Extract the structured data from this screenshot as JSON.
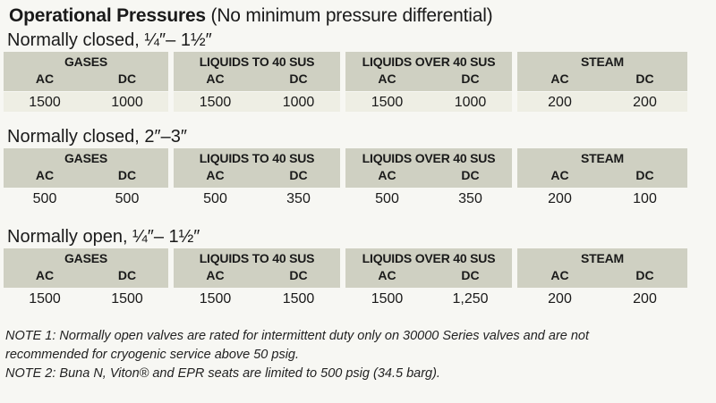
{
  "heading": {
    "bold": "Operational Pressures",
    "rest": " (No minimum pressure differential)"
  },
  "sections": [
    {
      "title": "Normally closed, ¼″– 1½″",
      "groups": [
        {
          "name": "GASES",
          "ac_label": "AC",
          "dc_label": "DC",
          "ac": "1500",
          "dc": "1000"
        },
        {
          "name": "LIQUIDS TO 40 SUS",
          "ac_label": "AC",
          "dc_label": "DC",
          "ac": "1500",
          "dc": "1000"
        },
        {
          "name": "LIQUIDS OVER 40 SUS",
          "ac_label": "AC",
          "dc_label": "DC",
          "ac": "1500",
          "dc": "1000"
        },
        {
          "name": "STEAM",
          "ac_label": "AC",
          "dc_label": "DC",
          "ac": "200",
          "dc": "200"
        }
      ]
    },
    {
      "title": "Normally closed, 2″–3″",
      "groups": [
        {
          "name": "GASES",
          "ac_label": "AC",
          "dc_label": "DC",
          "ac": "500",
          "dc": "500"
        },
        {
          "name": "LIQUIDS TO 40 SUS",
          "ac_label": "AC",
          "dc_label": "DC",
          "ac": "500",
          "dc": "350"
        },
        {
          "name": "LIQUIDS OVER 40 SUS",
          "ac_label": "AC",
          "dc_label": "DC",
          "ac": "500",
          "dc": "350"
        },
        {
          "name": "STEAM",
          "ac_label": "AC",
          "dc_label": "DC",
          "ac": "200",
          "dc": "100"
        }
      ]
    },
    {
      "title": "Normally open, ¼″– 1½″",
      "groups": [
        {
          "name": "GASES",
          "ac_label": "AC",
          "dc_label": "DC",
          "ac": "1500",
          "dc": "1500"
        },
        {
          "name": "LIQUIDS TO 40 SUS",
          "ac_label": "AC",
          "dc_label": "DC",
          "ac": "1500",
          "dc": "1500"
        },
        {
          "name": "LIQUIDS OVER 40 SUS",
          "ac_label": "AC",
          "dc_label": "DC",
          "ac": "1500",
          "dc": "1,250"
        },
        {
          "name": "STEAM",
          "ac_label": "AC",
          "dc_label": "DC",
          "ac": "200",
          "dc": "200"
        }
      ]
    }
  ],
  "notes": [
    "NOTE 1: Normally open valves are rated for intermittent duty only on 30000 Series valves and are not",
    "recommended for cryogenic service above 50 psig.",
    "NOTE 2: Buna N, Viton® and EPR seats are limited to 500 psig (34.5 barg)."
  ],
  "colors": {
    "header_band": "#cfd0c2",
    "first_value_band": "#eeeee4",
    "page": "#f7f7f3"
  }
}
